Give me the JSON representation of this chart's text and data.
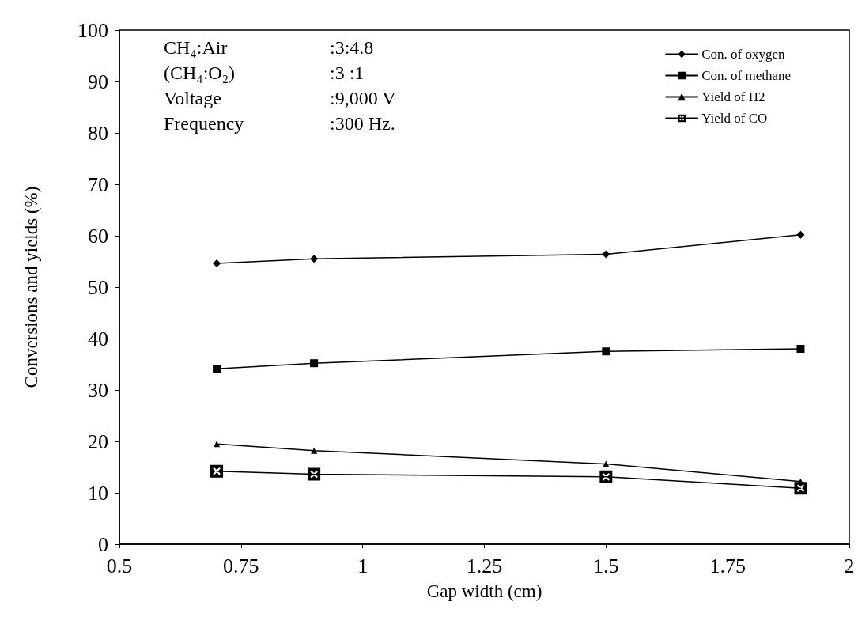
{
  "chart_data": {
    "type": "line",
    "xlabel": "Gap width (cm)",
    "ylabel": "Conversions and yields (%)",
    "x": [
      0.7,
      0.9,
      1.5,
      1.9
    ],
    "series": [
      {
        "name": "Con. of oxygen",
        "color": "#000000",
        "marker": "diamond",
        "values": [
          54.6,
          55.5,
          56.4,
          60.2
        ]
      },
      {
        "name": "Con. of methane",
        "color": "#000000",
        "marker": "square",
        "values": [
          34.1,
          35.2,
          37.5,
          38.0
        ]
      },
      {
        "name": "Yield of H2",
        "color": "#000000",
        "marker": "triangle",
        "values": [
          19.5,
          18.2,
          15.6,
          12.2
        ]
      },
      {
        "name": "Yield of CO",
        "color": "#000000",
        "marker": "cross",
        "values": [
          14.2,
          13.6,
          13.1,
          10.9
        ]
      }
    ],
    "xlim": [
      0.5,
      2
    ],
    "xticks": [
      0.5,
      0.75,
      1,
      1.25,
      1.5,
      1.75,
      2
    ],
    "ylim": [
      0,
      100
    ],
    "yticks": [
      0,
      10,
      20,
      30,
      40,
      50,
      60,
      70,
      80,
      90,
      100
    ],
    "grid": false,
    "legend": "top right",
    "line_style": "solid",
    "annotations": [
      "CH₄:Air",
      ":3:4.8",
      "(CH₄:O₂)",
      ":3 :1",
      "Voltage",
      ":9,000 V",
      "Frequency",
      ":300 Hz."
    ]
  }
}
